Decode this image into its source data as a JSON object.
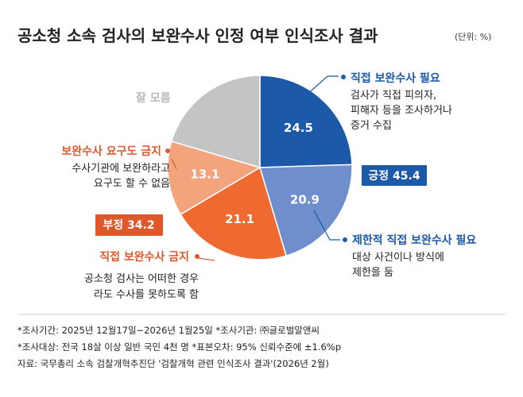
{
  "chart_data": {
    "type": "pie",
    "title": "공소청 소속 검사의 보완수사 인정 여부 인식조사 결과",
    "unit": "(단위: %)",
    "slices": [
      {
        "name": "직접 보완수사 필요",
        "value": 24.5,
        "color": "#1c59a8",
        "description": [
          "검사가 직접 피의자,",
          "피해자 등을 조사하거나",
          "증거 수집"
        ]
      },
      {
        "name": "제한적 직접 보완수사 필요",
        "value": 20.9,
        "color": "#6e8fcc",
        "description": [
          "대상 사건이나 방식에",
          "제한을 둠"
        ]
      },
      {
        "name": "직접 보완수사 금지",
        "value": 21.1,
        "color": "#ee6a31",
        "description": [
          "공소청 검사는 어떠한 경우",
          "라도 수사를 못하도록 함"
        ]
      },
      {
        "name": "보완수사 요구도 금지",
        "value": 13.1,
        "color": "#f4a47c",
        "description": [
          "수사기관에 보완하라고",
          "요구도 할 수 없음"
        ]
      },
      {
        "name": "잘 모름",
        "value": 20.4,
        "color": "#c4c4c4",
        "description": []
      }
    ],
    "groups": [
      {
        "label": "긍정 45.4",
        "color": "#1c59a8"
      },
      {
        "label": "부정 34.2",
        "color": "#e0572a"
      }
    ]
  },
  "notes": [
    "*조사기간: 2025년 12월17일~2026년 1월25일 *조사기관: ㈜글로벌알앤씨",
    "*조사대상: 전국 18살 이상 일반 국민 4천 명 *표본오차: 95% 신뢰수준에 ±1.6%p",
    "자료: 국무총리 소속 검찰개혁추진단 '검찰개혁 관련 인식조사 결과'(2026년 2월)"
  ]
}
